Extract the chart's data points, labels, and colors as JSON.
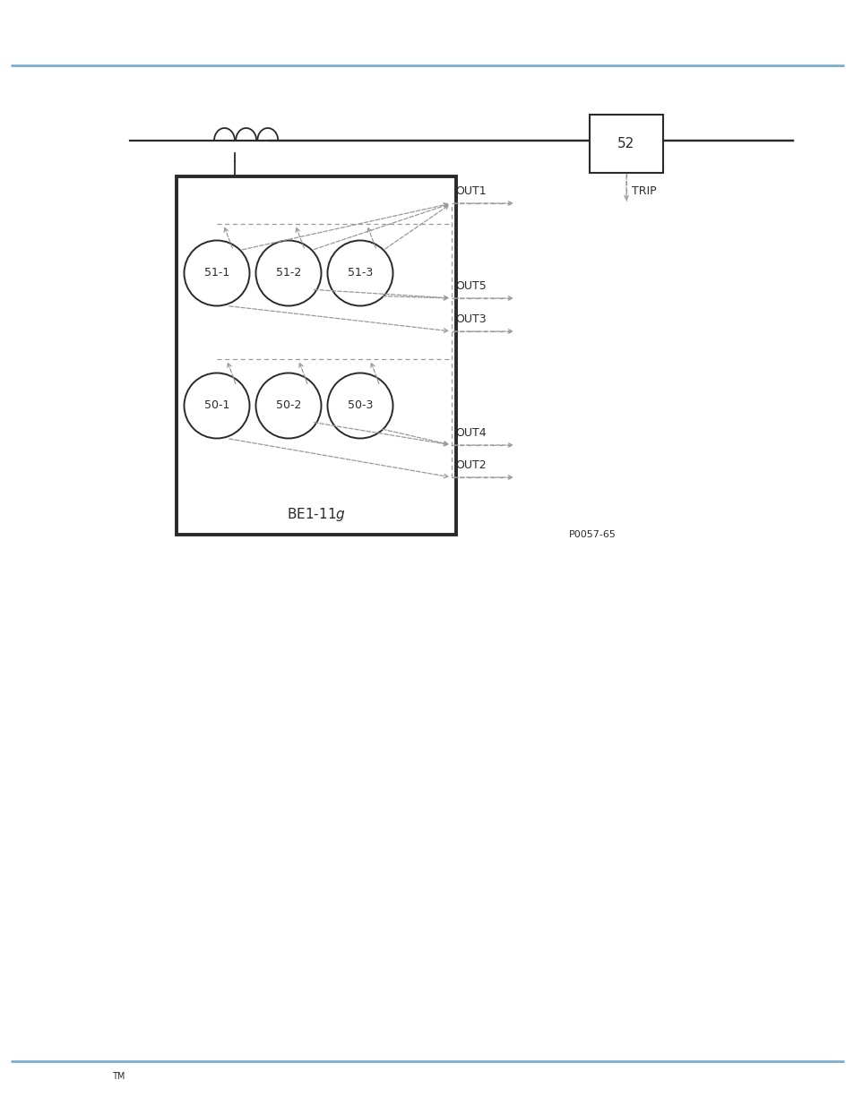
{
  "bg_color": "#ffffff",
  "top_line_color": "#7aaecc",
  "bottom_line_color": "#7aaecc",
  "box_color": "#2a2a2a",
  "dash_color": "#999999",
  "text_color": "#2a2a2a",
  "tm_text": "TM",
  "p_code": "P0057-65",
  "circles_row1": [
    "51-1",
    "51-2",
    "51-3"
  ],
  "circles_row2": [
    "50-1",
    "50-2",
    "50-3"
  ],
  "out_labels": [
    "OUT1",
    "OUT5",
    "OUT3",
    "OUT4",
    "OUT2"
  ],
  "trip_label": "TRIP",
  "box52_label": "52",
  "fig_width": 9.54,
  "fig_height": 12.35
}
